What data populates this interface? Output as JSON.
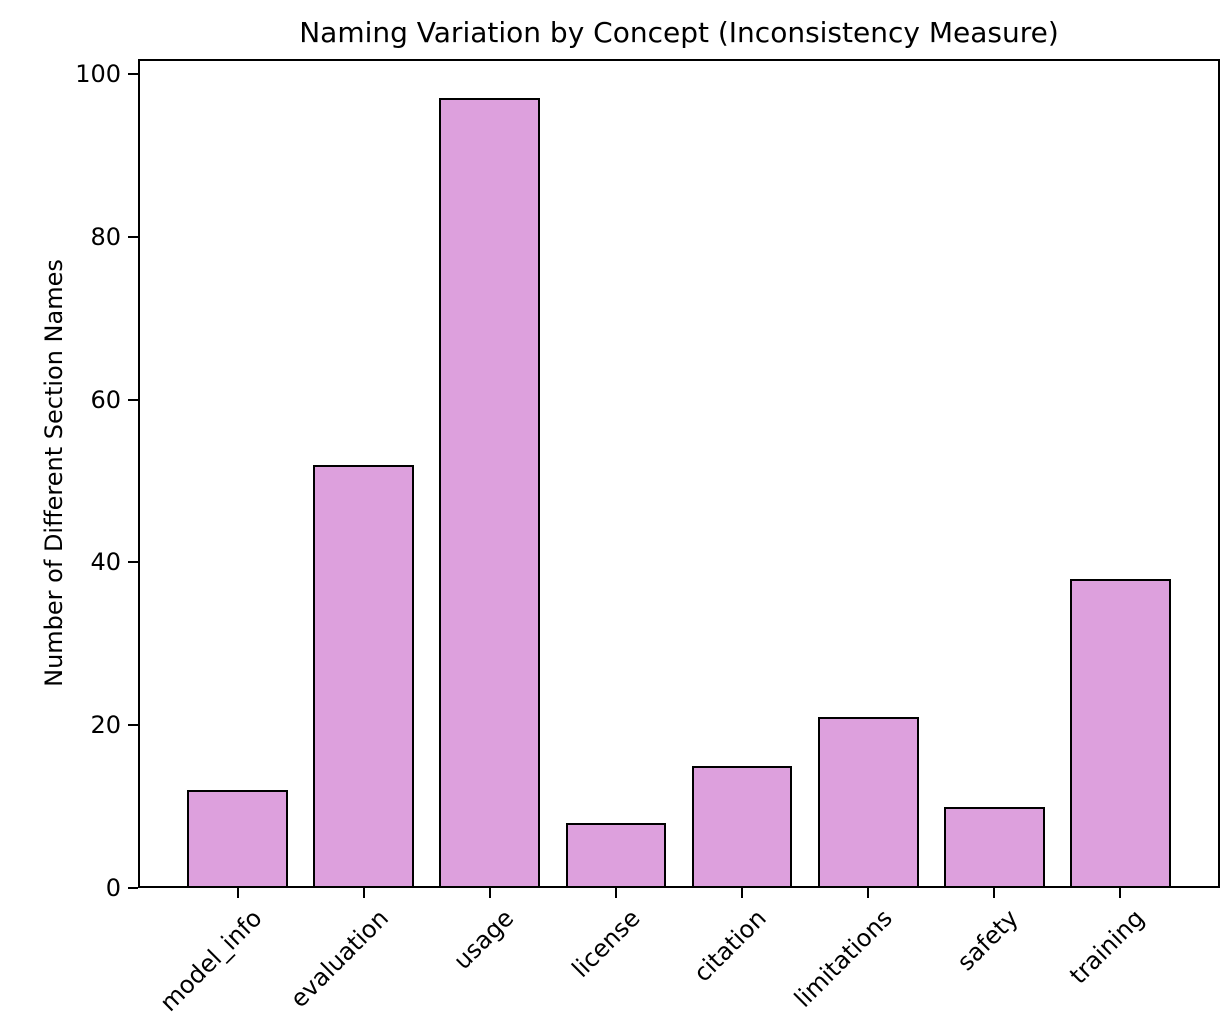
{
  "chart_data": {
    "type": "bar",
    "title": "Naming Variation by Concept (Inconsistency Measure)",
    "ylabel": "Number of Different Section Names",
    "xlabel": "",
    "categories": [
      "model_info",
      "evaluation",
      "usage",
      "license",
      "citation",
      "limitations",
      "safety",
      "training"
    ],
    "values": [
      12,
      52,
      97,
      8,
      15,
      21,
      10,
      38
    ],
    "yticks": [
      0,
      20,
      40,
      60,
      80,
      100
    ],
    "ylim": [
      0,
      101.85
    ],
    "xlim": [
      -0.79,
      7.79
    ],
    "bar_width": 0.8,
    "x_tick_rotation_deg": 45,
    "grid": false,
    "legend": null,
    "colors": {
      "bar_fill": "#DDA0DD",
      "bar_edge": "#000000",
      "axis": "#000000",
      "text": "#000000",
      "background": "#FFFFFF"
    }
  }
}
